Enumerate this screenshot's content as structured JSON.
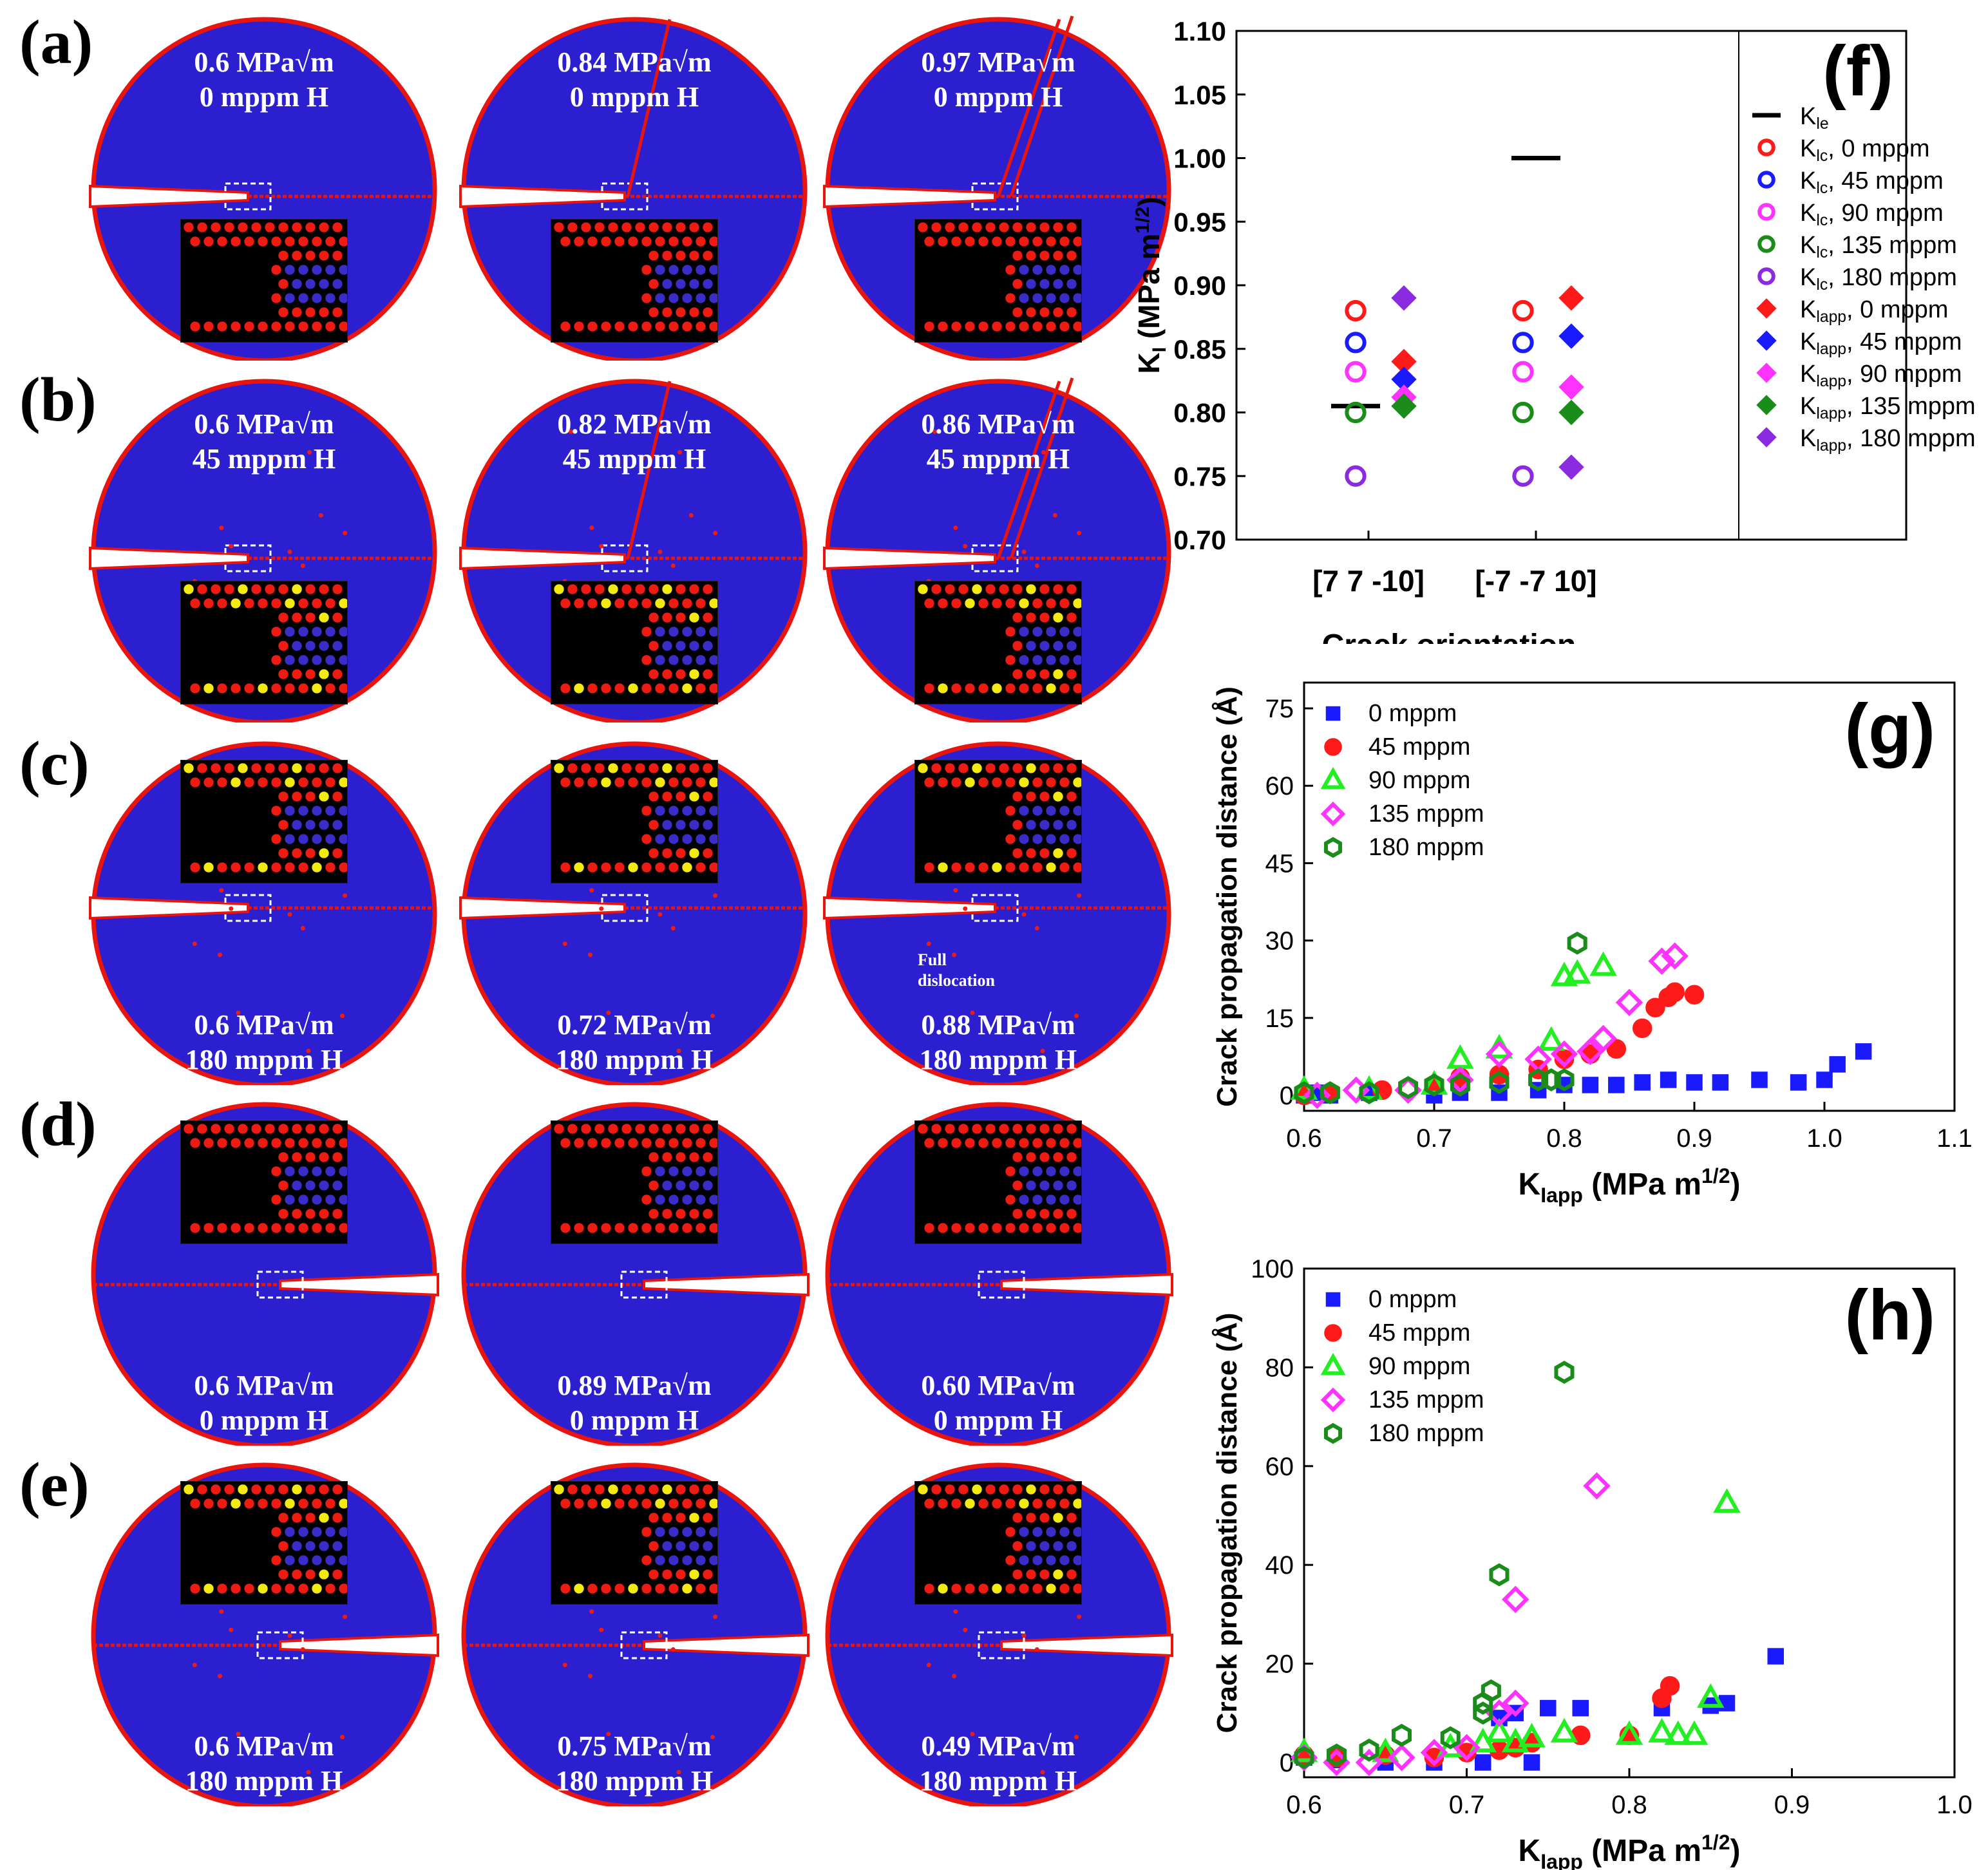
{
  "panels": {
    "a": {
      "label": "(a)",
      "sims": [
        {
          "k": "0.6 MPa√m",
          "h": "0 mppm H"
        },
        {
          "k": "0.84 MPa√m",
          "h": "0 mppm H"
        },
        {
          "k": "0.97 MPa√m",
          "h": "0 mppm H"
        }
      ]
    },
    "b": {
      "label": "(b)",
      "sims": [
        {
          "k": "0.6 MPa√m",
          "h": "45 mppm H"
        },
        {
          "k": "0.82 MPa√m",
          "h": "45 mppm H"
        },
        {
          "k": "0.86 MPa√m",
          "h": "45 mppm H"
        }
      ]
    },
    "c": {
      "label": "(c)",
      "sims": [
        {
          "k": "0.6 MPa√m",
          "h": "180 mppm H"
        },
        {
          "k": "0.72 MPa√m",
          "h": "180 mppm H"
        },
        {
          "k": "0.88 MPa√m",
          "h": "180 mppm H"
        }
      ],
      "annotation": "Full dislocation"
    },
    "d": {
      "label": "(d)",
      "sims": [
        {
          "k": "0.6 MPa√m",
          "h": "0 mppm H"
        },
        {
          "k": "0.89 MPa√m",
          "h": "0 mppm H"
        },
        {
          "k": "0.60 MPa√m",
          "h": "0 mppm H"
        }
      ]
    },
    "e": {
      "label": "(e)",
      "sims": [
        {
          "k": "0.6 MPa√m",
          "h": "180 mppm H"
        },
        {
          "k": "0.75 MPa√m",
          "h": "180 mppm H"
        },
        {
          "k": "0.49 MPa√m",
          "h": "180 mppm H"
        }
      ]
    }
  },
  "colors": {
    "disc": "#2b1fd0",
    "edge": "#e8140e",
    "atom_red": "#ee1b12",
    "atom_blue": "#3a2cc8",
    "atom_yellow": "#f2ea12"
  },
  "chart_data": [
    {
      "id": "f",
      "panel_label": "(f)",
      "type": "scatter",
      "xlabel": "Crack orientation",
      "ylabel": "K_I (MPa m^1/2)",
      "categories": [
        "[7 7 -10]",
        "[-7 -7 10]"
      ],
      "ylim": [
        0.7,
        1.1
      ],
      "yticks": [
        "0.70",
        "0.75",
        "0.80",
        "0.85",
        "0.90",
        "0.95",
        "1.00",
        "1.05",
        "1.10"
      ],
      "Kle": [
        0.805,
        1.0
      ],
      "series": [
        {
          "name": "KIc, 0 mppm",
          "marker": "circle",
          "filled": false,
          "color": "#ff1a1a",
          "values": [
            0.88,
            0.88
          ]
        },
        {
          "name": "KIc, 45 mppm",
          "marker": "circle",
          "filled": false,
          "color": "#1a1aff",
          "values": [
            0.855,
            0.855
          ]
        },
        {
          "name": "KIc, 90 mppm",
          "marker": "circle",
          "filled": false,
          "color": "#ff33ff",
          "values": [
            0.832,
            0.832
          ]
        },
        {
          "name": "KIc, 135 mppm",
          "marker": "circle",
          "filled": false,
          "color": "#1a8c1a",
          "values": [
            0.8,
            0.8
          ]
        },
        {
          "name": "KIc, 180 mppm",
          "marker": "circle",
          "filled": false,
          "color": "#8a2be2",
          "values": [
            0.75,
            0.75
          ]
        },
        {
          "name": "KIapp, 0 mppm",
          "marker": "diamond",
          "filled": true,
          "color": "#ff1a1a",
          "values": [
            0.84,
            0.89
          ]
        },
        {
          "name": "KIapp, 45 mppm",
          "marker": "diamond",
          "filled": true,
          "color": "#1a1aff",
          "values": [
            0.826,
            0.86
          ]
        },
        {
          "name": "KIapp, 90 mppm",
          "marker": "diamond",
          "filled": true,
          "color": "#ff33ff",
          "values": [
            0.812,
            0.82
          ]
        },
        {
          "name": "KIapp, 135 mppm",
          "marker": "diamond",
          "filled": true,
          "color": "#1a8c1a",
          "values": [
            0.805,
            0.8
          ]
        },
        {
          "name": "KIapp, 180 mppm",
          "marker": "diamond",
          "filled": true,
          "color": "#8a2be2",
          "values": [
            0.89,
            0.757
          ]
        }
      ],
      "legend": {
        "kle": "KIe",
        "entries": [
          "KIc, 0 mppm",
          "KIc, 45 mppm",
          "KIc, 90 mppm",
          "KIc, 135 mppm",
          "KIc, 180 mppm",
          "KIapp, 0 mppm",
          "KIapp, 45 mppm",
          "KIapp, 90 mppm",
          "KIapp, 135 mppm",
          "KIapp, 180 mppm"
        ]
      }
    },
    {
      "id": "g",
      "panel_label": "(g)",
      "type": "scatter",
      "xlabel": "KIapp (MPa m^1/2)",
      "ylabel": "Crack propagation distance (Å)",
      "xlim": [
        0.6,
        1.1
      ],
      "ylim": [
        -3,
        80
      ],
      "xticks": [
        "0.6",
        "0.7",
        "0.8",
        "0.9",
        "1.0",
        "1.1"
      ],
      "yticks": [
        "0",
        "15",
        "30",
        "45",
        "60",
        "75"
      ],
      "series": [
        {
          "name": "0 mppm",
          "marker": "square",
          "color": "#1a1aff",
          "points": [
            [
              0.6,
              0
            ],
            [
              0.61,
              0.5
            ],
            [
              0.62,
              0
            ],
            [
              0.65,
              0.5
            ],
            [
              0.7,
              0
            ],
            [
              0.72,
              0.5
            ],
            [
              0.75,
              0.5
            ],
            [
              0.78,
              1
            ],
            [
              0.8,
              2
            ],
            [
              0.82,
              2
            ],
            [
              0.84,
              2
            ],
            [
              0.86,
              2.5
            ],
            [
              0.88,
              3
            ],
            [
              0.9,
              2.5
            ],
            [
              0.92,
              2.5
            ],
            [
              0.95,
              3
            ],
            [
              0.98,
              2.5
            ],
            [
              1.0,
              3
            ],
            [
              1.01,
              6
            ],
            [
              1.03,
              8.5
            ]
          ]
        },
        {
          "name": "45 mppm",
          "marker": "circle",
          "color": "#ff1a1a",
          "points": [
            [
              0.6,
              0
            ],
            [
              0.62,
              0.5
            ],
            [
              0.66,
              1
            ],
            [
              0.7,
              2
            ],
            [
              0.72,
              3.5
            ],
            [
              0.75,
              4
            ],
            [
              0.78,
              5
            ],
            [
              0.8,
              7
            ],
            [
              0.82,
              8
            ],
            [
              0.84,
              9
            ],
            [
              0.86,
              13
            ],
            [
              0.87,
              17
            ],
            [
              0.88,
              19
            ],
            [
              0.885,
              20
            ],
            [
              0.9,
              19.5
            ]
          ]
        },
        {
          "name": "90 mppm",
          "marker": "triangle",
          "color": "#22ee22",
          "points": [
            [
              0.6,
              1
            ],
            [
              0.65,
              1
            ],
            [
              0.7,
              2
            ],
            [
              0.72,
              7
            ],
            [
              0.75,
              9
            ],
            [
              0.79,
              10.5
            ],
            [
              0.8,
              23
            ],
            [
              0.81,
              23.5
            ],
            [
              0.83,
              25
            ]
          ]
        },
        {
          "name": "135 mppm",
          "marker": "diamond",
          "color": "#ff33ff",
          "points": [
            [
              0.61,
              0
            ],
            [
              0.64,
              1
            ],
            [
              0.68,
              1
            ],
            [
              0.72,
              3
            ],
            [
              0.75,
              8
            ],
            [
              0.78,
              7
            ],
            [
              0.8,
              8
            ],
            [
              0.82,
              8.5
            ],
            [
              0.83,
              11
            ],
            [
              0.85,
              18
            ],
            [
              0.875,
              26
            ],
            [
              0.885,
              27
            ]
          ]
        },
        {
          "name": "180 mppm",
          "marker": "hexagon",
          "color": "#1a8c1a",
          "points": [
            [
              0.6,
              0.5
            ],
            [
              0.62,
              0.5
            ],
            [
              0.65,
              0.5
            ],
            [
              0.68,
              1.5
            ],
            [
              0.7,
              2
            ],
            [
              0.72,
              2
            ],
            [
              0.75,
              2.5
            ],
            [
              0.78,
              3
            ],
            [
              0.79,
              3
            ],
            [
              0.8,
              3
            ],
            [
              0.81,
              29.5
            ]
          ]
        }
      ]
    },
    {
      "id": "h",
      "panel_label": "(h)",
      "type": "scatter",
      "xlabel": "KIapp (MPa m^1/2)",
      "ylabel": "Crack propagation distance (Å)",
      "xlim": [
        0.6,
        1.0
      ],
      "ylim": [
        -3,
        100
      ],
      "xticks": [
        "0.6",
        "0.7",
        "0.8",
        "0.9",
        "1.0"
      ],
      "yticks": [
        "0",
        "20",
        "40",
        "60",
        "80",
        "100"
      ],
      "series": [
        {
          "name": "0 mppm",
          "marker": "square",
          "color": "#1a1aff",
          "points": [
            [
              0.6,
              1
            ],
            [
              0.62,
              0.5
            ],
            [
              0.65,
              0
            ],
            [
              0.68,
              0
            ],
            [
              0.71,
              0
            ],
            [
              0.72,
              9
            ],
            [
              0.73,
              10
            ],
            [
              0.74,
              0
            ],
            [
              0.75,
              11
            ],
            [
              0.77,
              11
            ],
            [
              0.82,
              11
            ],
            [
              0.85,
              11.5
            ],
            [
              0.86,
              12
            ],
            [
              0.89,
              21.5
            ]
          ]
        },
        {
          "name": "45 mppm",
          "marker": "circle",
          "color": "#ff1a1a",
          "points": [
            [
              0.6,
              1.5
            ],
            [
              0.62,
              1
            ],
            [
              0.65,
              1.5
            ],
            [
              0.68,
              1
            ],
            [
              0.7,
              2
            ],
            [
              0.72,
              2.5
            ],
            [
              0.73,
              3
            ],
            [
              0.74,
              4
            ],
            [
              0.77,
              5.5
            ],
            [
              0.8,
              5.5
            ],
            [
              0.82,
              13
            ],
            [
              0.825,
              15.5
            ]
          ]
        },
        {
          "name": "90 mppm",
          "marker": "triangle",
          "color": "#22ee22",
          "points": [
            [
              0.6,
              2
            ],
            [
              0.65,
              2
            ],
            [
              0.69,
              3
            ],
            [
              0.71,
              4
            ],
            [
              0.72,
              6
            ],
            [
              0.73,
              4
            ],
            [
              0.74,
              5
            ],
            [
              0.76,
              6
            ],
            [
              0.8,
              5.5
            ],
            [
              0.82,
              6
            ],
            [
              0.83,
              5.5
            ],
            [
              0.84,
              5.5
            ],
            [
              0.85,
              13
            ],
            [
              0.86,
              52.5
            ]
          ]
        },
        {
          "name": "135 mppm",
          "marker": "diamond",
          "color": "#ff33ff",
          "points": [
            [
              0.6,
              1
            ],
            [
              0.62,
              0
            ],
            [
              0.64,
              0
            ],
            [
              0.66,
              1
            ],
            [
              0.68,
              2
            ],
            [
              0.7,
              3
            ],
            [
              0.72,
              10
            ],
            [
              0.73,
              12
            ],
            [
              0.73,
              33
            ],
            [
              0.78,
              56
            ]
          ]
        },
        {
          "name": "180 mppm",
          "marker": "hexagon",
          "color": "#1a8c1a",
          "points": [
            [
              0.6,
              1
            ],
            [
              0.62,
              1.5
            ],
            [
              0.64,
              2.5
            ],
            [
              0.66,
              5.5
            ],
            [
              0.69,
              5
            ],
            [
              0.71,
              10
            ],
            [
              0.71,
              12
            ],
            [
              0.715,
              14.5
            ],
            [
              0.72,
              38
            ],
            [
              0.76,
              79
            ]
          ]
        }
      ]
    }
  ]
}
